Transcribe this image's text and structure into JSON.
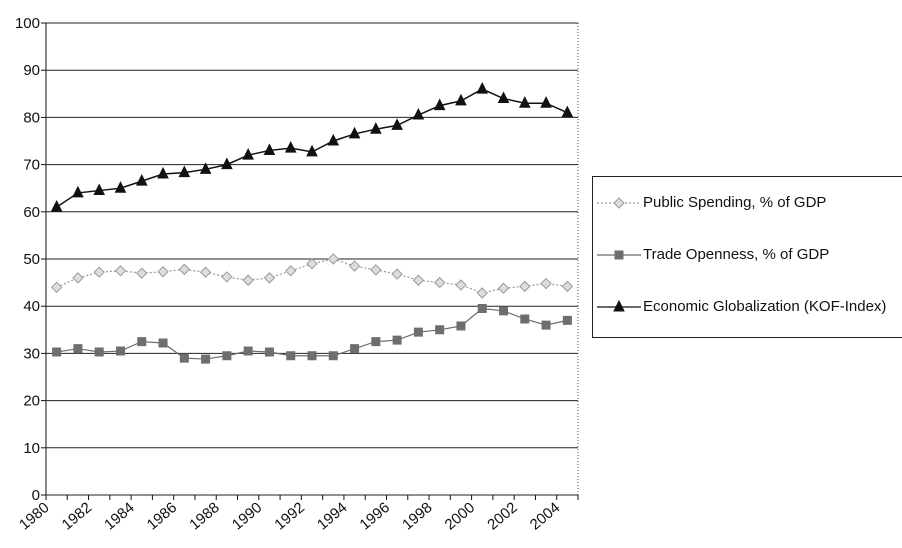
{
  "chart_data": {
    "type": "line",
    "categories": [
      "1980",
      null,
      "1982",
      null,
      "1984",
      null,
      "1986",
      null,
      "1988",
      null,
      "1990",
      null,
      "1992",
      null,
      "1994",
      null,
      "1996",
      null,
      "1998",
      null,
      "2000",
      null,
      "2002",
      null,
      "2004"
    ],
    "series": [
      {
        "name": "Public Spending, % of GDP",
        "color": "#9a9a9a",
        "marker": "diamond",
        "values": [
          44,
          46,
          47.2,
          47.5,
          47,
          47.3,
          47.8,
          47.2,
          46.2,
          45.5,
          46,
          47.5,
          49,
          50,
          48.5,
          47.7,
          46.8,
          45.5,
          45,
          44.5,
          42.8,
          43.8,
          44.2,
          44.8,
          44.2
        ]
      },
      {
        "name": "Trade Openness, % of GDP",
        "color": "#6e6e6e",
        "marker": "square",
        "values": [
          30.3,
          31,
          30.3,
          30.5,
          32.5,
          32.2,
          29,
          28.8,
          29.5,
          30.5,
          30.3,
          29.5,
          29.5,
          29.5,
          31,
          32.5,
          32.8,
          34.5,
          35,
          35.8,
          39.5,
          39,
          37.3,
          36,
          37
        ]
      },
      {
        "name": "Economic Globalization (KOF-Index)",
        "color": "#111111",
        "marker": "triangle",
        "values": [
          61,
          64,
          64.5,
          65,
          66.5,
          68,
          68.3,
          69,
          70,
          72,
          73,
          73.5,
          72.7,
          75,
          76.5,
          77.5,
          78.3,
          80.5,
          82.5,
          83.5,
          86,
          84,
          83,
          83,
          81
        ]
      }
    ],
    "ylim": [
      0,
      100
    ],
    "yticks": [
      0,
      10,
      20,
      30,
      40,
      50,
      60,
      70,
      80,
      90,
      100
    ],
    "grid": true
  }
}
